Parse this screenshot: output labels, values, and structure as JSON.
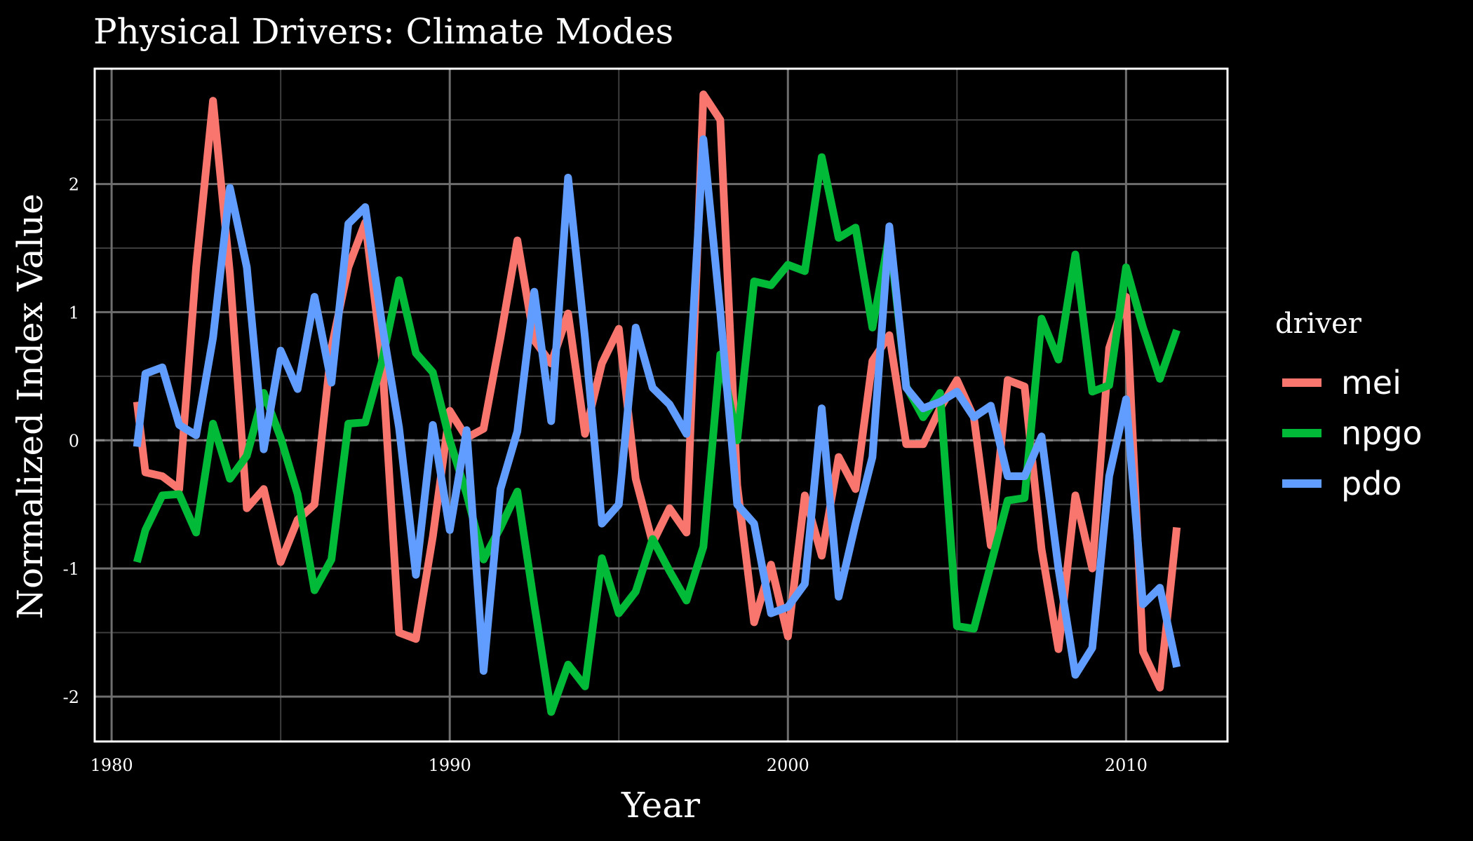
{
  "chart_data": {
    "type": "line",
    "title": "Physical Drivers: Climate Modes",
    "xlabel": "Year",
    "ylabel": "Normalized Index Value",
    "xlim": [
      1979.5,
      2013
    ],
    "ylim": [
      -2.35,
      2.9
    ],
    "xticks": [
      1980,
      1990,
      2000,
      2010
    ],
    "yticks": [
      -2,
      -1,
      0,
      1,
      2
    ],
    "grid": true,
    "reference_line": {
      "y": 0,
      "style": "dashed"
    },
    "legend": {
      "title": "driver",
      "position": "right"
    },
    "x": [
      1980.75,
      1981.0,
      1981.5,
      1982.0,
      1982.5,
      1983.0,
      1983.5,
      1984.0,
      1984.5,
      1985.0,
      1985.5,
      1986.0,
      1986.5,
      1987.0,
      1987.5,
      1988.0,
      1988.5,
      1989.0,
      1989.5,
      1990.0,
      1990.5,
      1991.0,
      1991.5,
      1992.0,
      1992.5,
      1993.0,
      1993.5,
      1994.0,
      1994.5,
      1995.0,
      1995.5,
      1996.0,
      1996.5,
      1997.0,
      1997.5,
      1998.0,
      1998.5,
      1999.0,
      1999.5,
      2000.0,
      2000.5,
      2001.0,
      2001.5,
      2002.0,
      2002.5,
      2003.0,
      2003.5,
      2004.0,
      2004.5,
      2005.0,
      2005.5,
      2006.0,
      2006.5,
      2007.0,
      2007.5,
      2008.0,
      2008.5,
      2009.0,
      2009.5,
      2010.0,
      2010.5,
      2011.0,
      2011.5
    ],
    "series": [
      {
        "name": "mei",
        "color": "#f8766d",
        "values": [
          0.3,
          -0.25,
          -0.28,
          -0.38,
          1.35,
          2.65,
          1.3,
          -0.53,
          -0.38,
          -0.95,
          -0.62,
          -0.5,
          0.72,
          1.35,
          1.7,
          0.63,
          -1.5,
          -1.55,
          -0.75,
          0.23,
          0.02,
          0.09,
          0.8,
          1.56,
          0.78,
          0.6,
          0.99,
          0.05,
          0.6,
          0.87,
          -0.3,
          -0.8,
          -0.53,
          -0.72,
          2.7,
          2.5,
          -0.35,
          -1.42,
          -0.97,
          -1.53,
          -0.43,
          -0.9,
          -0.13,
          -0.38,
          0.62,
          0.82,
          -0.03,
          -0.03,
          0.25,
          0.47,
          0.18,
          -0.82,
          0.47,
          0.42,
          -0.85,
          -1.63,
          -0.43,
          -1.0,
          0.72,
          1.12,
          -1.65,
          -1.93,
          -0.68
        ]
      },
      {
        "name": "npgo",
        "color": "#00ba38",
        "values": [
          -0.95,
          -0.7,
          -0.43,
          -0.42,
          -0.72,
          0.13,
          -0.3,
          -0.12,
          0.37,
          0.02,
          -0.42,
          -1.17,
          -0.93,
          0.13,
          0.14,
          0.62,
          1.25,
          0.68,
          0.53,
          0.0,
          -0.42,
          -0.93,
          -0.68,
          -0.4,
          -1.28,
          -2.12,
          -1.75,
          -1.92,
          -0.92,
          -1.35,
          -1.18,
          -0.77,
          -1.02,
          -1.25,
          -0.83,
          0.67,
          0.0,
          1.24,
          1.21,
          1.37,
          1.32,
          2.21,
          1.58,
          1.66,
          0.88,
          1.6,
          0.42,
          0.18,
          0.37,
          -1.45,
          -1.47,
          -0.97,
          -0.47,
          -0.45,
          0.95,
          0.63,
          1.45,
          0.38,
          0.43,
          1.35,
          0.88,
          0.48,
          0.86
        ]
      },
      {
        "name": "pdo",
        "color": "#619cff",
        "values": [
          -0.05,
          0.52,
          0.57,
          0.12,
          0.04,
          0.8,
          1.97,
          1.35,
          -0.07,
          0.7,
          0.4,
          1.12,
          0.45,
          1.69,
          1.82,
          0.9,
          0.1,
          -1.05,
          0.12,
          -0.7,
          0.08,
          -1.8,
          -0.38,
          0.07,
          1.16,
          0.15,
          2.05,
          0.8,
          -0.65,
          -0.5,
          0.88,
          0.41,
          0.28,
          0.05,
          2.35,
          1.0,
          -0.5,
          -0.65,
          -1.35,
          -1.3,
          -1.12,
          0.25,
          -1.22,
          -0.65,
          -0.13,
          1.67,
          0.41,
          0.25,
          0.3,
          0.38,
          0.18,
          0.27,
          -0.28,
          -0.28,
          0.03,
          -1.0,
          -1.83,
          -1.62,
          -0.28,
          0.32,
          -1.28,
          -1.15,
          -1.77
        ]
      }
    ]
  }
}
